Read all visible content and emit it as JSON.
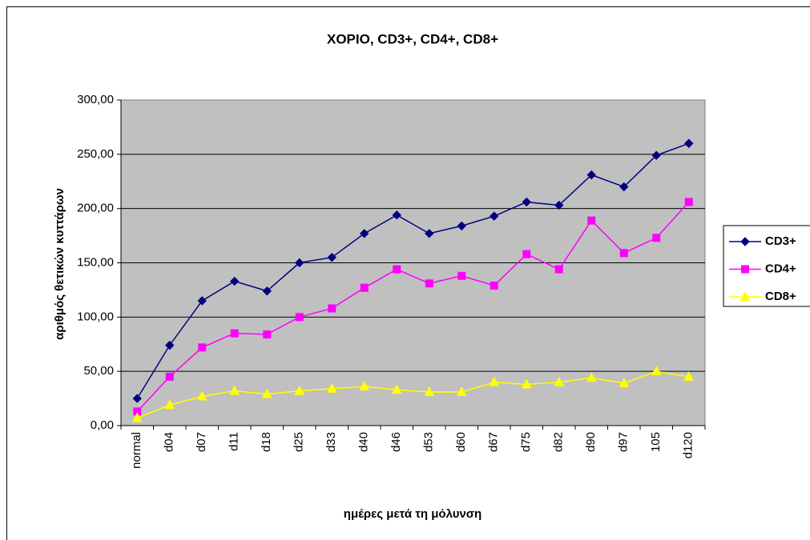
{
  "chart_data": {
    "type": "line",
    "title": "ΧΟΡΙΟ, CD3+, CD4+, CD8+",
    "y_label": "αριθμός θετικών κυττάρων",
    "x_label": "ημέρες μετά τη μόλυνση",
    "categories": [
      "normal",
      "d04",
      "d07",
      "d11",
      "d18",
      "d25",
      "d33",
      "d40",
      "d46",
      "d53",
      "d60",
      "d67",
      "d75",
      "d82",
      "d90",
      "d97",
      "105",
      "d120"
    ],
    "series": [
      {
        "name": "CD3+",
        "color": "#000080",
        "marker": "diamond",
        "values": [
          25,
          74,
          115,
          133,
          124,
          150,
          155,
          177,
          194,
          177,
          184,
          193,
          206,
          203,
          231,
          220,
          249,
          260
        ]
      },
      {
        "name": "CD4+",
        "color": "#ff00ff",
        "marker": "square",
        "values": [
          13,
          45,
          72,
          85,
          84,
          100,
          108,
          127,
          144,
          131,
          138,
          129,
          158,
          144,
          189,
          159,
          173,
          206
        ]
      },
      {
        "name": "CD8+",
        "color": "#ffff00",
        "marker": "triangle",
        "values": [
          7,
          19,
          27,
          32,
          29,
          32,
          34,
          36,
          33,
          31,
          31,
          40,
          38,
          40,
          44,
          39,
          50,
          45
        ]
      }
    ],
    "ylim": [
      0,
      300
    ],
    "yticks": [
      {
        "value": 0,
        "label": "0,00"
      },
      {
        "value": 50,
        "label": "50,00"
      },
      {
        "value": 100,
        "label": "100,00"
      },
      {
        "value": 150,
        "label": "150,00"
      },
      {
        "value": 200,
        "label": "200,00"
      },
      {
        "value": 250,
        "label": "250,00"
      },
      {
        "value": 300,
        "label": "300,00"
      }
    ],
    "grid": true,
    "legend": "right"
  }
}
